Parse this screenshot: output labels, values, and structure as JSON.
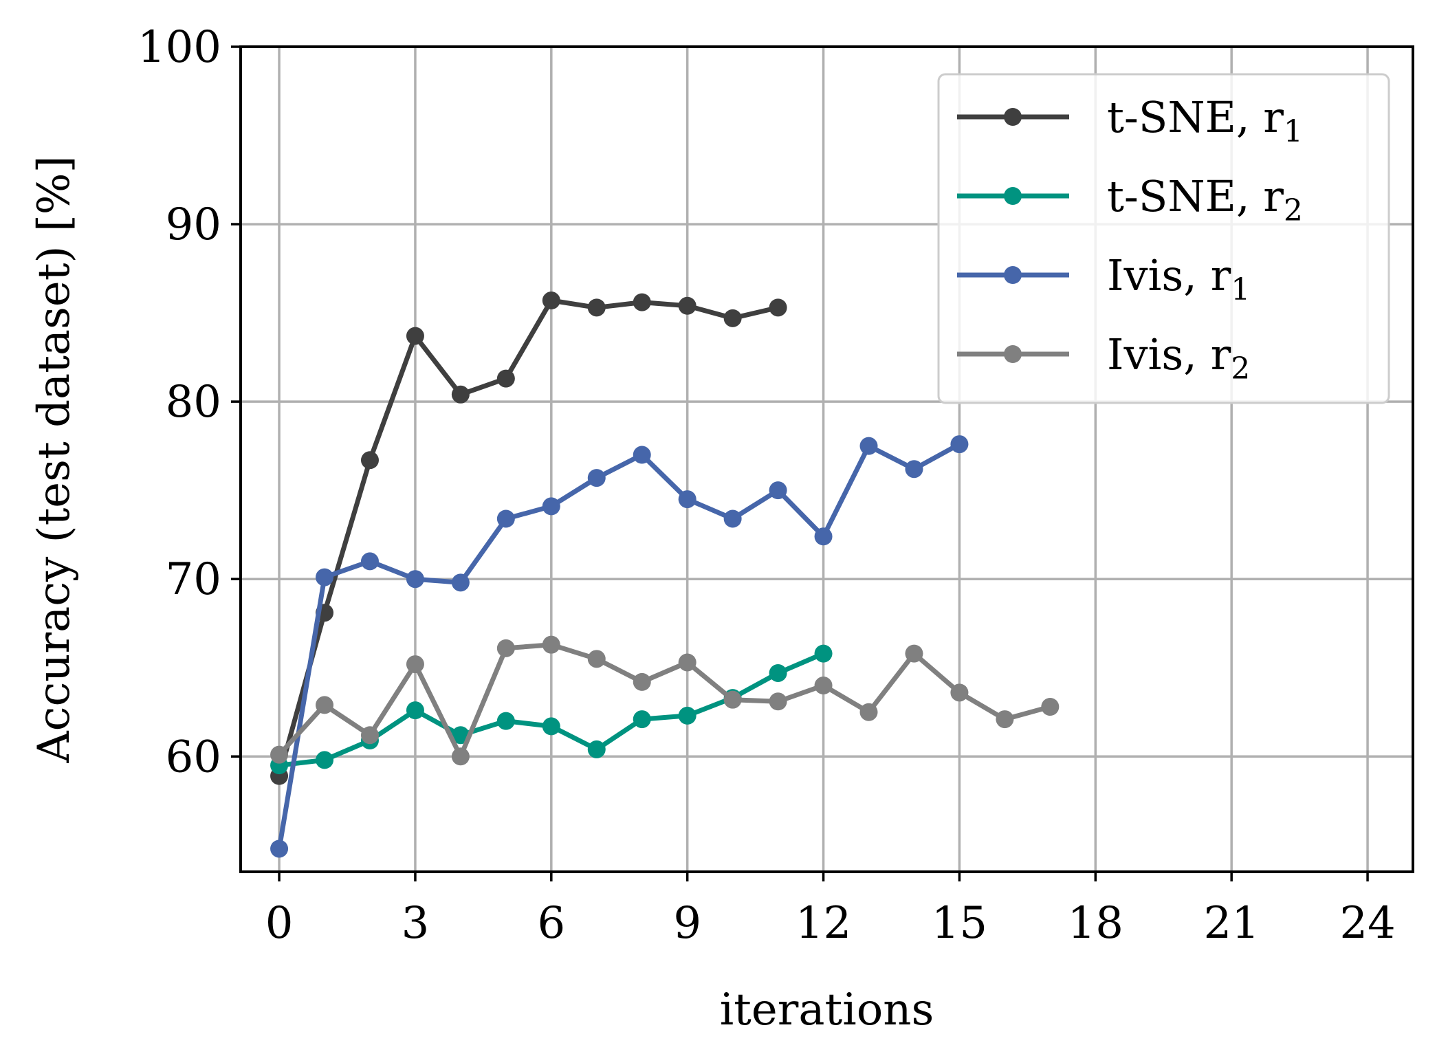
{
  "chart_data": {
    "type": "line",
    "title": "",
    "xlabel": "iterations",
    "ylabel": "Accuracy (test dataset) [%]",
    "xlim": [
      -0.85,
      25.0
    ],
    "ylim": [
      53.5,
      100
    ],
    "xticks": [
      0,
      3,
      6,
      9,
      12,
      15,
      18,
      21,
      24
    ],
    "xtick_labels": [
      "0",
      "3",
      "6",
      "9",
      "12",
      "15",
      "18",
      "21",
      "24"
    ],
    "yticks": [
      60,
      70,
      80,
      90,
      100
    ],
    "ytick_labels": [
      "60",
      "70",
      "80",
      "90",
      "100"
    ],
    "grid": true,
    "legend_position": "top-right",
    "series": [
      {
        "name": "t-SNE, r",
        "subscript": "1",
        "color": "#3f3f3f",
        "x": [
          0,
          1,
          2,
          3,
          4,
          5,
          6,
          7,
          8,
          9,
          10,
          11
        ],
        "y": [
          58.9,
          68.1,
          76.7,
          83.7,
          80.4,
          81.3,
          85.7,
          85.3,
          85.6,
          85.4,
          84.7,
          85.3
        ]
      },
      {
        "name": "t-SNE, r",
        "subscript": "2",
        "color": "#009380",
        "x": [
          0,
          1,
          2,
          3,
          4,
          5,
          6,
          7,
          8,
          9,
          10,
          11,
          12
        ],
        "y": [
          59.5,
          59.8,
          60.9,
          62.6,
          61.2,
          62.0,
          61.7,
          60.4,
          62.1,
          62.3,
          63.3,
          64.7,
          65.8
        ]
      },
      {
        "name": "Ivis, r",
        "subscript": "1",
        "color": "#4666aa",
        "x": [
          0,
          1,
          2,
          3,
          4,
          5,
          6,
          7,
          8,
          9,
          10,
          11,
          12,
          13,
          14,
          15
        ],
        "y": [
          54.8,
          70.1,
          71.0,
          70.0,
          69.8,
          73.4,
          74.1,
          75.7,
          77.0,
          74.5,
          73.4,
          75.0,
          72.4,
          77.5,
          76.2,
          77.6
        ]
      },
      {
        "name": "Ivis, r",
        "subscript": "2",
        "color": "#808080",
        "x": [
          0,
          1,
          2,
          3,
          4,
          5,
          6,
          7,
          8,
          9,
          10,
          11,
          12,
          13,
          14,
          15,
          16,
          17
        ],
        "y": [
          60.1,
          62.9,
          61.2,
          65.2,
          60.0,
          66.1,
          66.3,
          65.5,
          64.2,
          65.3,
          63.2,
          63.1,
          64.0,
          62.5,
          65.8,
          63.6,
          62.1,
          62.8
        ]
      }
    ]
  }
}
